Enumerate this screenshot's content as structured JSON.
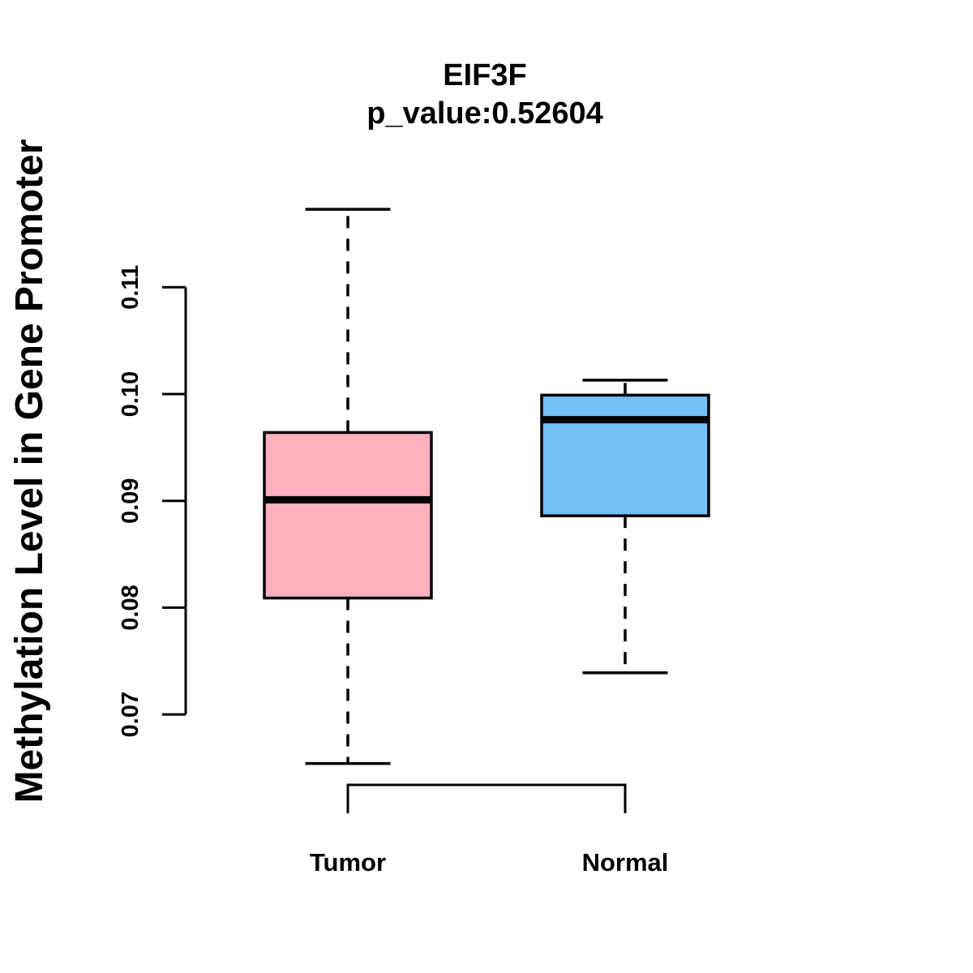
{
  "chart_data": {
    "type": "boxplot",
    "title": "EIF3F",
    "subtitle": "p_value:0.52604",
    "p_value": 0.52604,
    "ylabel": "Methylation Level in Gene Promoter",
    "xlabel": "",
    "categories": [
      "Tumor",
      "Normal"
    ],
    "ytick_values": [
      0.07,
      0.08,
      0.09,
      0.1,
      0.11
    ],
    "ytick_labels": [
      "0.07",
      "0.08",
      "0.09",
      "0.10",
      "0.11"
    ],
    "axis_tick_range": [
      0.07,
      0.11
    ],
    "ylim": [
      0.063,
      0.119
    ],
    "grid": false,
    "legend": "none",
    "series": [
      {
        "name": "Tumor",
        "color": "#FFAFBE",
        "lower_whisker": 0.0654,
        "q1": 0.0809,
        "median": 0.0901,
        "q3": 0.0964,
        "upper_whisker": 0.1173
      },
      {
        "name": "Normal",
        "color": "#74BFF7",
        "lower_whisker": 0.0739,
        "q1": 0.0886,
        "median": 0.0976,
        "q3": 0.0999,
        "upper_whisker": 0.1013
      }
    ],
    "stroke_color": "#000000",
    "background_color": "#FFFFFF"
  }
}
